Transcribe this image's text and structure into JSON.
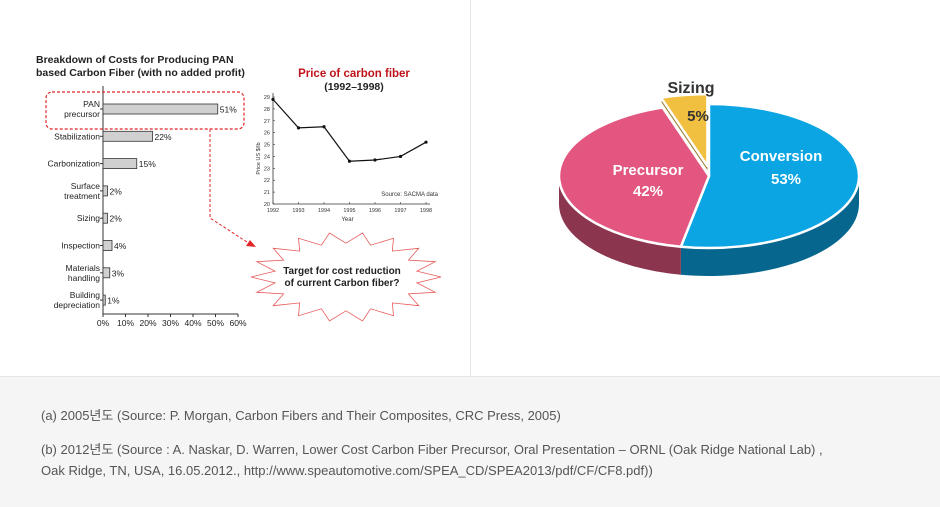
{
  "chart_data": [
    {
      "type": "bar",
      "orientation": "horizontal",
      "title": "Breakdown of Costs for Producing PAN based Carbon Fiber (with no added profit)",
      "title_lines": [
        "Breakdown of Costs for Producing PAN",
        "based Carbon Fiber (with no added profit)"
      ],
      "categories": [
        [
          "PAN",
          "precursor"
        ],
        [
          "Stabilization"
        ],
        [
          "Carbonization"
        ],
        [
          "Surface",
          "treatment"
        ],
        [
          "Sizing"
        ],
        [
          "Inspection"
        ],
        [
          "Materials",
          "handling"
        ],
        [
          "Building",
          "depreciation"
        ]
      ],
      "values": [
        51,
        22,
        15,
        2,
        2,
        4,
        3,
        1
      ],
      "value_labels": [
        "51%",
        "22%",
        "15%",
        "2%",
        "2%",
        "4%",
        "3%",
        "1%"
      ],
      "xlim": [
        0,
        60
      ],
      "xticks": [
        "0%",
        "10%",
        "20%",
        "30%",
        "40%",
        "50%",
        "60%"
      ],
      "annotation": [
        "Target for cost reduction",
        "of current Carbon fiber?"
      ]
    },
    {
      "type": "line",
      "title": "Price of carbon fiber",
      "subtitle": "(1992–1998)",
      "xlabel": "Year",
      "ylabel": "Price US $/lb",
      "x": [
        1992,
        1993,
        1994,
        1995,
        1996,
        1997,
        1998
      ],
      "y": [
        28.8,
        26.4,
        26.5,
        23.6,
        23.7,
        24.0,
        25.2
      ],
      "xlim": [
        1992,
        1998
      ],
      "ylim": [
        20,
        29
      ],
      "yticks": [
        "20",
        "21",
        "22",
        "23",
        "24",
        "25",
        "26",
        "27",
        "28",
        "29"
      ],
      "xticks": [
        "1992",
        "1993",
        "1994",
        "1995",
        "1996",
        "1997",
        "1998"
      ],
      "source_note": "Source: SACMA data"
    },
    {
      "type": "pie",
      "title": "Sizing",
      "slices": [
        {
          "label": "Conversion",
          "value": 53,
          "value_label": "53%",
          "color": "#0ba5e3"
        },
        {
          "label": "Precursor",
          "value": 42,
          "value_label": "42%",
          "color": "#e25680"
        },
        {
          "label": "Sizing",
          "value": 5,
          "value_label": "5%",
          "color": "#f2c040"
        }
      ]
    }
  ],
  "footer": {
    "line_a": "(a) 2005년도 (Source: P. Morgan, Carbon Fibers and Their Composites, CRC Press,  2005)",
    "line_b1": "(b) 2012년도 (Source : A. Naskar, D. Warren, Lower Cost Carbon Fiber Precursor, Oral Presentation – ORNL (Oak Ridge National Lab) ,",
    "line_b2": "Oak Ridge, TN, USA, 16.05.2012., http://www.speautomotive.com/SPEA_CD/SPEA2013/pdf/CF/CF8.pdf))"
  }
}
